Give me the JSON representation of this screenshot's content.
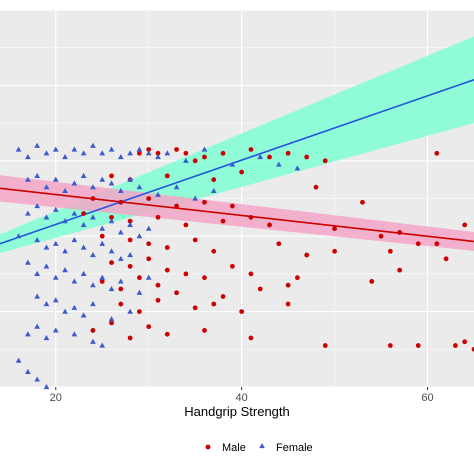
{
  "chart_data": {
    "type": "scatter",
    "title": "",
    "xlabel": "Handgrip Strength",
    "ylabel": "",
    "xlim": [
      14,
      65
    ],
    "ylim": [
      0,
      10
    ],
    "x_ticks": [
      20,
      40,
      60
    ],
    "y_ticks": [],
    "grid": true,
    "background": "#ebebeb",
    "legend_position": "bottom",
    "series": [
      {
        "name": "Male",
        "marker": "circle",
        "color": "#cc0000",
        "points": [
          [
            29,
            6.2
          ],
          [
            30,
            6.3
          ],
          [
            31,
            6.2
          ],
          [
            34,
            6.2
          ],
          [
            36,
            6.1
          ],
          [
            33,
            6.3
          ],
          [
            35,
            6.0
          ],
          [
            38,
            6.2
          ],
          [
            41,
            6.3
          ],
          [
            43,
            6.1
          ],
          [
            45,
            6.2
          ],
          [
            47,
            6.1
          ],
          [
            49,
            6.0
          ],
          [
            61,
            6.2
          ],
          [
            26,
            5.6
          ],
          [
            28,
            5.5
          ],
          [
            32,
            5.6
          ],
          [
            37,
            5.5
          ],
          [
            40,
            5.7
          ],
          [
            48,
            5.3
          ],
          [
            24,
            5.0
          ],
          [
            27,
            4.9
          ],
          [
            30,
            5.0
          ],
          [
            33,
            4.8
          ],
          [
            36,
            4.9
          ],
          [
            39,
            4.8
          ],
          [
            53,
            4.9
          ],
          [
            64,
            4.3
          ],
          [
            23,
            4.6
          ],
          [
            26,
            4.5
          ],
          [
            28,
            4.4
          ],
          [
            31,
            4.5
          ],
          [
            34,
            4.3
          ],
          [
            38,
            4.4
          ],
          [
            41,
            4.5
          ],
          [
            43,
            4.3
          ],
          [
            50,
            4.2
          ],
          [
            55,
            4.0
          ],
          [
            57,
            4.1
          ],
          [
            61,
            3.8
          ],
          [
            25,
            4.0
          ],
          [
            28,
            3.9
          ],
          [
            30,
            3.8
          ],
          [
            32,
            3.7
          ],
          [
            35,
            3.9
          ],
          [
            37,
            3.6
          ],
          [
            44,
            3.8
          ],
          [
            47,
            3.5
          ],
          [
            50,
            3.6
          ],
          [
            56,
            3.6
          ],
          [
            59,
            3.8
          ],
          [
            62,
            3.4
          ],
          [
            26,
            3.3
          ],
          [
            28,
            3.2
          ],
          [
            30,
            3.4
          ],
          [
            32,
            3.1
          ],
          [
            34,
            3.0
          ],
          [
            36,
            2.9
          ],
          [
            39,
            3.2
          ],
          [
            41,
            3.0
          ],
          [
            46,
            2.9
          ],
          [
            54,
            2.8
          ],
          [
            57,
            3.1
          ],
          [
            25,
            2.8
          ],
          [
            27,
            2.6
          ],
          [
            29,
            2.9
          ],
          [
            31,
            2.7
          ],
          [
            33,
            2.5
          ],
          [
            38,
            2.4
          ],
          [
            42,
            2.6
          ],
          [
            45,
            2.7
          ],
          [
            27,
            2.2
          ],
          [
            29,
            2.0
          ],
          [
            31,
            2.3
          ],
          [
            35,
            2.1
          ],
          [
            37,
            2.2
          ],
          [
            40,
            2.0
          ],
          [
            45,
            2.2
          ],
          [
            24,
            1.5
          ],
          [
            26,
            1.7
          ],
          [
            28,
            1.3
          ],
          [
            30,
            1.6
          ],
          [
            32,
            1.4
          ],
          [
            36,
            1.5
          ],
          [
            41,
            1.3
          ],
          [
            49,
            1.1
          ],
          [
            56,
            1.1
          ],
          [
            59,
            1.1
          ],
          [
            63,
            1.1
          ],
          [
            64,
            1.2
          ],
          [
            65,
            1.0
          ]
        ]
      },
      {
        "name": "Female",
        "marker": "triangle",
        "color": "#3b5ccc",
        "points": [
          [
            16,
            6.3
          ],
          [
            17,
            6.1
          ],
          [
            18,
            6.4
          ],
          [
            19,
            6.2
          ],
          [
            20,
            6.3
          ],
          [
            21,
            6.1
          ],
          [
            22,
            6.3
          ],
          [
            23,
            6.2
          ],
          [
            24,
            6.4
          ],
          [
            25,
            6.2
          ],
          [
            26,
            6.3
          ],
          [
            27,
            6.1
          ],
          [
            28,
            6.2
          ],
          [
            29,
            6.3
          ],
          [
            30,
            6.2
          ],
          [
            31,
            6.1
          ],
          [
            32,
            6.2
          ],
          [
            34,
            6.0
          ],
          [
            36,
            6.3
          ],
          [
            39,
            5.9
          ],
          [
            42,
            6.1
          ],
          [
            44,
            5.9
          ],
          [
            46,
            5.8
          ],
          [
            17,
            5.5
          ],
          [
            18,
            5.6
          ],
          [
            19,
            5.3
          ],
          [
            20,
            5.5
          ],
          [
            21,
            5.2
          ],
          [
            22,
            5.4
          ],
          [
            23,
            5.6
          ],
          [
            24,
            5.3
          ],
          [
            25,
            5.5
          ],
          [
            26,
            5.4
          ],
          [
            27,
            5.2
          ],
          [
            28,
            5.5
          ],
          [
            29,
            5.3
          ],
          [
            31,
            5.1
          ],
          [
            33,
            5.3
          ],
          [
            35,
            5.0
          ],
          [
            37,
            5.2
          ],
          [
            17,
            4.6
          ],
          [
            18,
            4.8
          ],
          [
            19,
            4.5
          ],
          [
            20,
            4.7
          ],
          [
            21,
            4.4
          ],
          [
            22,
            4.6
          ],
          [
            23,
            4.3
          ],
          [
            24,
            4.5
          ],
          [
            25,
            4.2
          ],
          [
            26,
            4.4
          ],
          [
            27,
            4.1
          ],
          [
            28,
            4.3
          ],
          [
            29,
            4.0
          ],
          [
            30,
            4.2
          ],
          [
            16,
            4.0
          ],
          [
            18,
            3.9
          ],
          [
            19,
            3.7
          ],
          [
            20,
            3.8
          ],
          [
            21,
            3.6
          ],
          [
            22,
            3.9
          ],
          [
            23,
            3.7
          ],
          [
            24,
            3.5
          ],
          [
            25,
            3.8
          ],
          [
            26,
            3.6
          ],
          [
            27,
            3.4
          ],
          [
            28,
            3.5
          ],
          [
            17,
            3.3
          ],
          [
            18,
            3.0
          ],
          [
            19,
            3.2
          ],
          [
            20,
            2.9
          ],
          [
            21,
            3.1
          ],
          [
            22,
            2.8
          ],
          [
            23,
            3.0
          ],
          [
            24,
            2.7
          ],
          [
            25,
            2.9
          ],
          [
            26,
            2.6
          ],
          [
            27,
            2.8
          ],
          [
            29,
            2.5
          ],
          [
            30,
            2.9
          ],
          [
            18,
            2.4
          ],
          [
            19,
            2.2
          ],
          [
            20,
            2.3
          ],
          [
            21,
            2.0
          ],
          [
            22,
            2.1
          ],
          [
            23,
            1.9
          ],
          [
            24,
            2.2
          ],
          [
            26,
            1.8
          ],
          [
            28,
            2.0
          ],
          [
            17,
            1.4
          ],
          [
            18,
            1.6
          ],
          [
            19,
            1.3
          ],
          [
            20,
            1.5
          ],
          [
            22,
            1.4
          ],
          [
            24,
            1.2
          ],
          [
            25,
            1.1
          ],
          [
            16,
            0.7
          ],
          [
            17,
            0.4
          ],
          [
            18,
            0.2
          ],
          [
            19,
            0.0
          ]
        ]
      }
    ],
    "fits": [
      {
        "series": "Male",
        "color": "#cc0000",
        "band_color": "#f4a6c7",
        "x": [
          14,
          65
        ],
        "y": [
          5.27,
          3.86
        ],
        "ci_halfwidth_start": 0.35,
        "ci_halfwidth_end": 0.25
      },
      {
        "series": "Female",
        "color": "#2255dd",
        "band_color": "#7fffd4",
        "x": [
          14,
          65
        ],
        "y": [
          3.8,
          8.15
        ],
        "ci_halfwidth_start": 0.25,
        "ci_halfwidth_end": 1.15
      }
    ]
  }
}
